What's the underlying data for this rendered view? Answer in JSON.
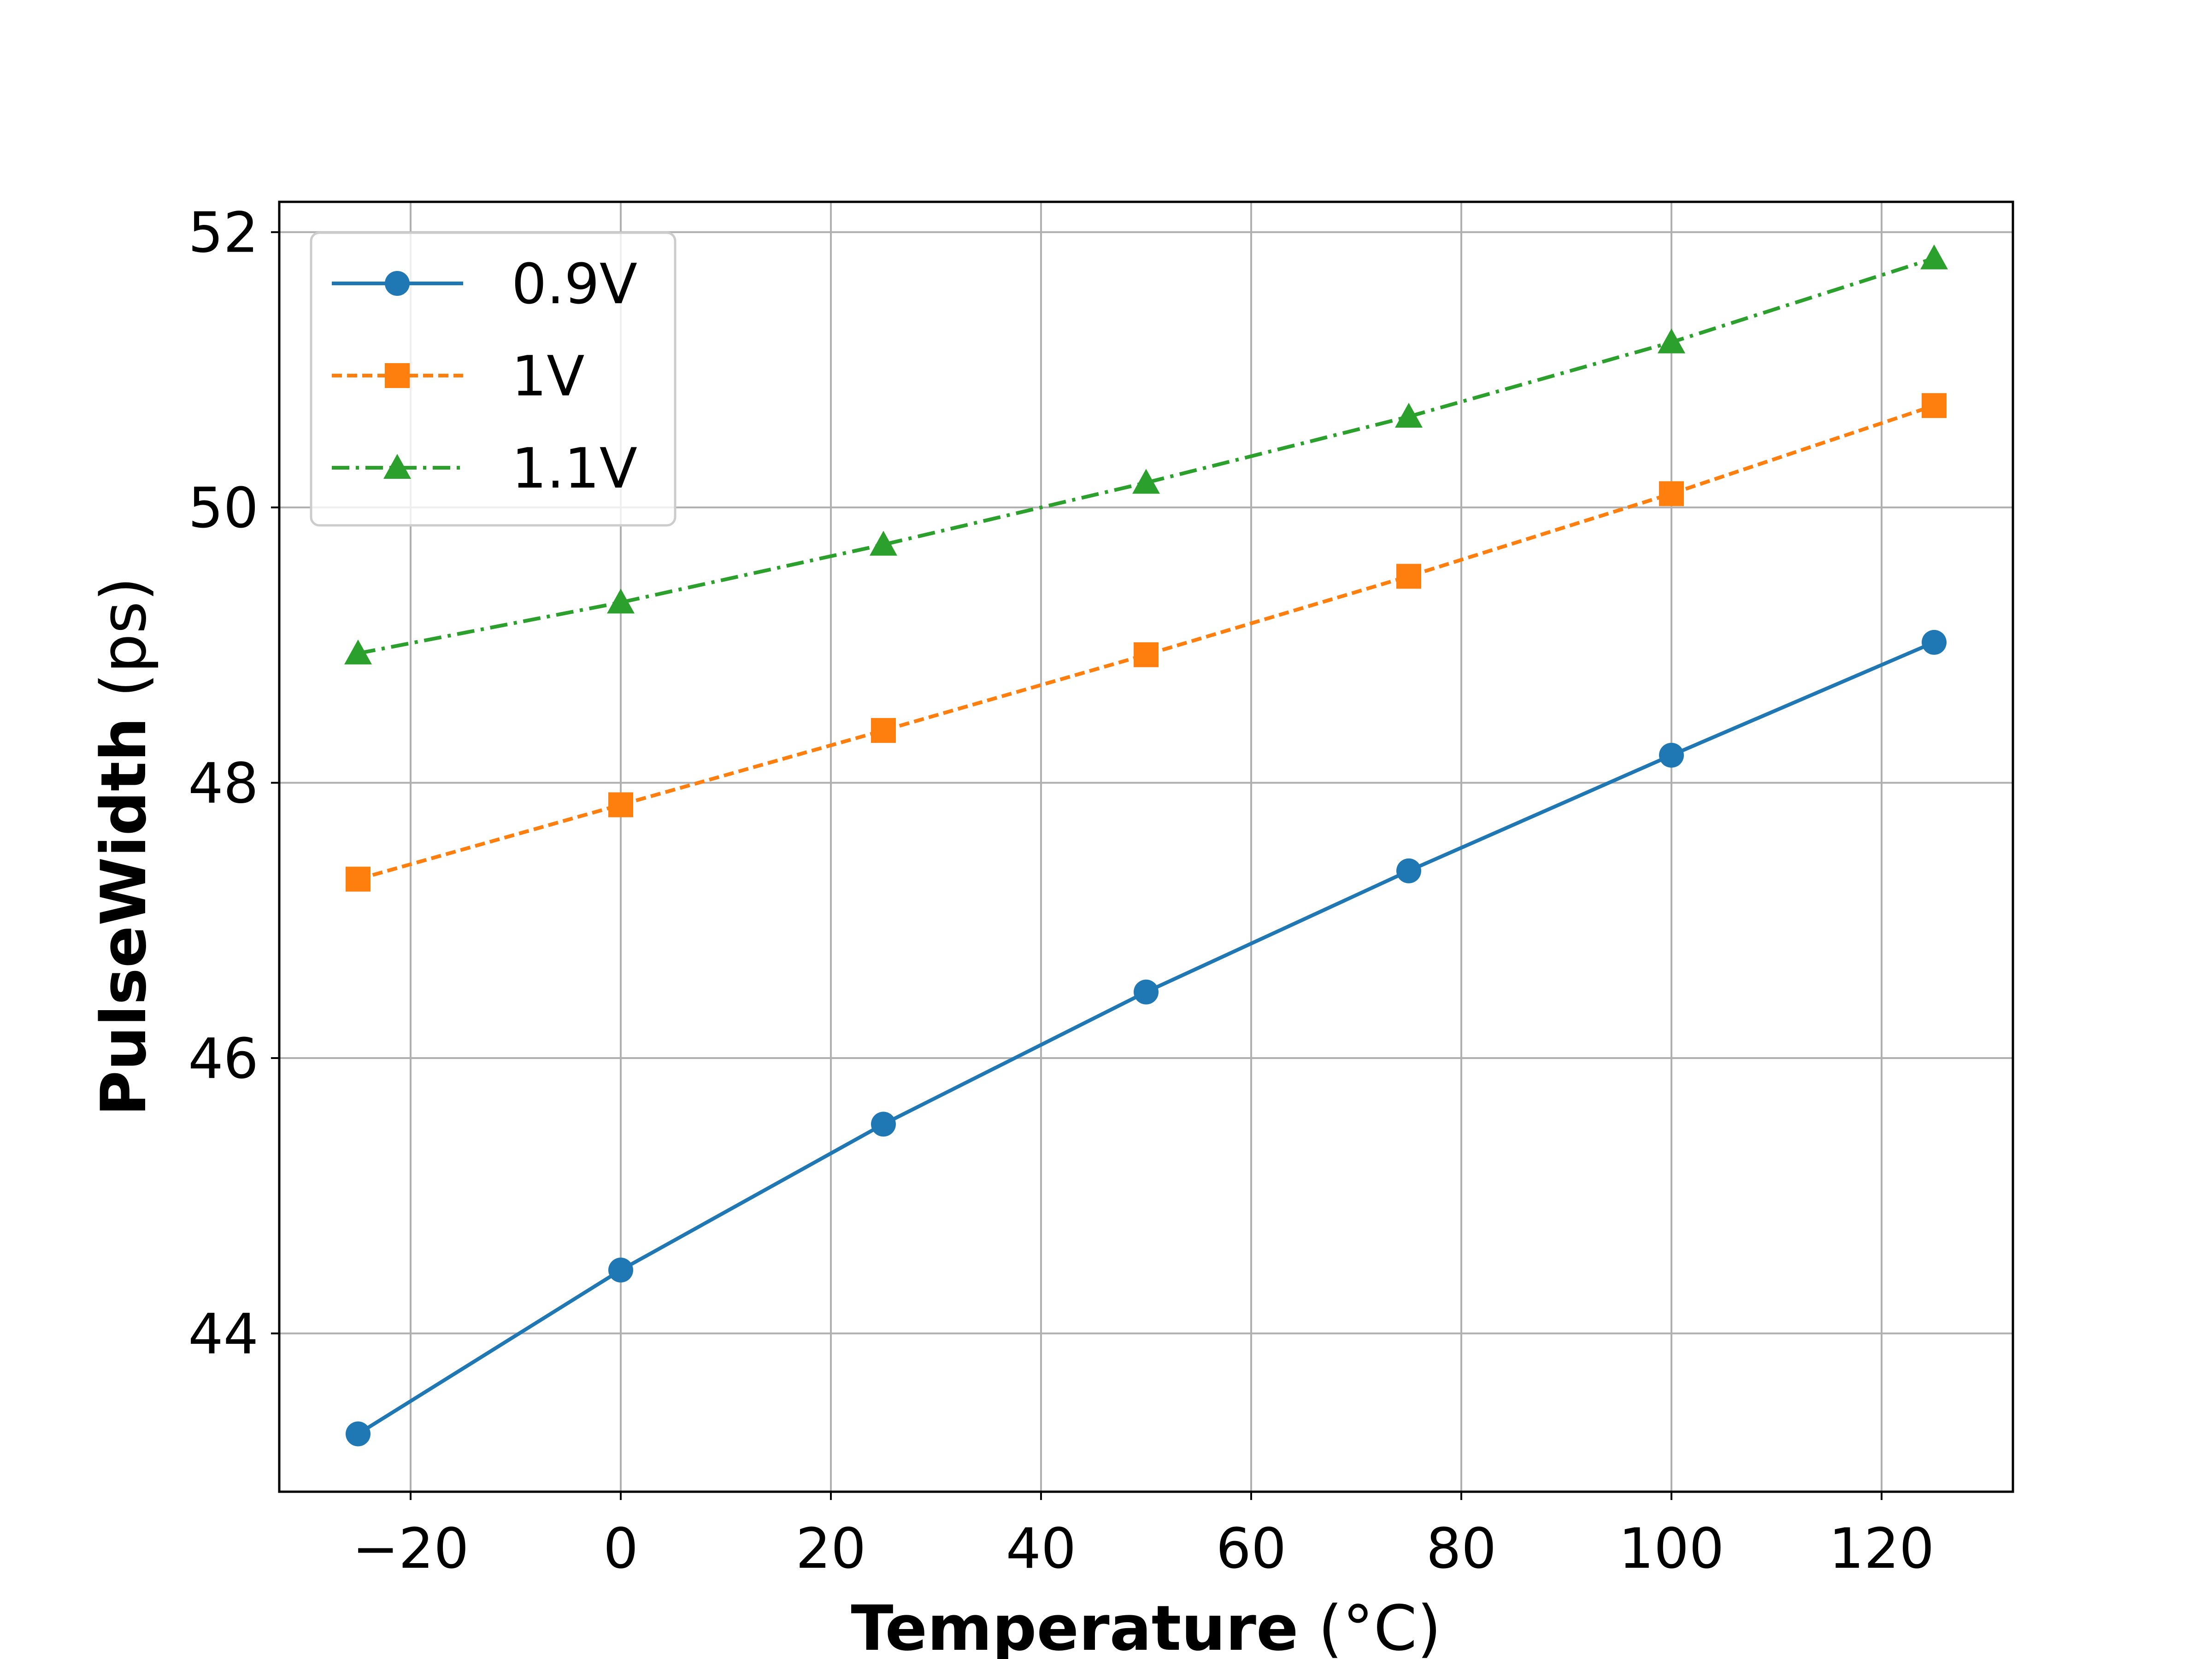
{
  "chart_data": {
    "type": "line",
    "title": "",
    "xlabel": {
      "bold": "Temperature",
      "normal": " (°C)"
    },
    "ylabel": {
      "bold": "PulseWidth",
      "normal": " (ps)"
    },
    "xlim": [
      -32.5,
      132.5
    ],
    "ylim": [
      42.85,
      52.22
    ],
    "xticks": [
      -20,
      0,
      20,
      40,
      60,
      80,
      100,
      120
    ],
    "xtick_labels": [
      "−20",
      "0",
      "20",
      "40",
      "60",
      "80",
      "100",
      "120"
    ],
    "yticks": [
      44,
      46,
      48,
      50,
      52
    ],
    "ytick_labels": [
      "44",
      "46",
      "48",
      "50",
      "52"
    ],
    "grid": true,
    "legend_position": "top-left",
    "x": [
      -25,
      0,
      25,
      50,
      75,
      100,
      125
    ],
    "series": [
      {
        "name": "0.9V",
        "color": "#1f77b4",
        "marker": "circle",
        "linestyle": "solid",
        "values": [
          43.27,
          44.46,
          45.52,
          46.48,
          47.36,
          48.2,
          49.02
        ]
      },
      {
        "name": "1V",
        "color": "#ff7f0e",
        "marker": "square",
        "linestyle": "dashed",
        "values": [
          47.3,
          47.84,
          48.38,
          48.93,
          49.5,
          50.1,
          50.74
        ]
      },
      {
        "name": "1.1V",
        "color": "#2ca02c",
        "marker": "triangle",
        "linestyle": "dashdot",
        "values": [
          48.94,
          49.31,
          49.73,
          50.18,
          50.66,
          51.2,
          51.81
        ]
      }
    ]
  }
}
